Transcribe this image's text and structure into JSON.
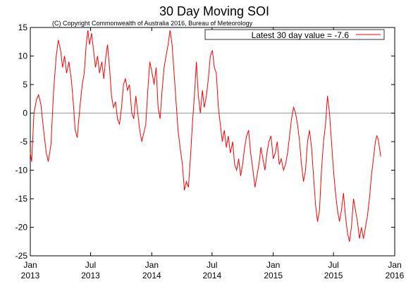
{
  "chart_data": {
    "type": "line",
    "title": "30 Day Moving SOI",
    "subtitle": "(C) Copyright Commonwealth of Australia 2016, Bureau of Meteorology",
    "legend": {
      "label": "Latest 30 day value = -7.6",
      "placement": "top-right"
    },
    "xlabel": "",
    "ylabel": "",
    "ylim": [
      -25,
      15
    ],
    "yticks": [
      15,
      10,
      5,
      0,
      -5,
      -10,
      -15,
      -20,
      -25
    ],
    "xlim": [
      "2013-01-01",
      "2016-01-01"
    ],
    "xticks": [
      {
        "date": "2013-01-01",
        "month": "Jan",
        "year": "2013"
      },
      {
        "date": "2013-07-01",
        "month": "Jul",
        "year": "2013"
      },
      {
        "date": "2014-01-01",
        "month": "Jan",
        "year": "2014"
      },
      {
        "date": "2014-07-01",
        "month": "Jul",
        "year": "2014"
      },
      {
        "date": "2015-01-01",
        "month": "Jan",
        "year": "2015"
      },
      {
        "date": "2015-07-01",
        "month": "Jul",
        "year": "2015"
      },
      {
        "date": "2016-01-01",
        "month": "Jan",
        "year": "2016"
      }
    ],
    "grid": false,
    "zero_line": true,
    "series": [
      {
        "name": "Latest 30 day value = -7.6",
        "color": "#ff0000",
        "points": [
          [
            "2013-01-01",
            -7
          ],
          [
            "2013-01-05",
            -8.5
          ],
          [
            "2013-01-12",
            0
          ],
          [
            "2013-01-20",
            2.5
          ],
          [
            "2013-01-26",
            3.2
          ],
          [
            "2013-02-02",
            1.5
          ],
          [
            "2013-02-10",
            -3
          ],
          [
            "2013-02-18",
            -7
          ],
          [
            "2013-02-24",
            -8.5
          ],
          [
            "2013-03-04",
            -5.5
          ],
          [
            "2013-03-12",
            4
          ],
          [
            "2013-03-20",
            10
          ],
          [
            "2013-03-26",
            12.8
          ],
          [
            "2013-04-02",
            11
          ],
          [
            "2013-04-08",
            8
          ],
          [
            "2013-04-14",
            10
          ],
          [
            "2013-04-20",
            7
          ],
          [
            "2013-04-27",
            9
          ],
          [
            "2013-05-04",
            6
          ],
          [
            "2013-05-10",
            2
          ],
          [
            "2013-05-16",
            -3
          ],
          [
            "2013-05-22",
            -4.3
          ],
          [
            "2013-05-30",
            1
          ],
          [
            "2013-06-06",
            5
          ],
          [
            "2013-06-12",
            7
          ],
          [
            "2013-06-18",
            12
          ],
          [
            "2013-06-23",
            14.5
          ],
          [
            "2013-06-28",
            12
          ],
          [
            "2013-07-04",
            14
          ],
          [
            "2013-07-10",
            11
          ],
          [
            "2013-07-16",
            8
          ],
          [
            "2013-07-22",
            10
          ],
          [
            "2013-07-28",
            7
          ],
          [
            "2013-08-04",
            9
          ],
          [
            "2013-08-10",
            6
          ],
          [
            "2013-08-16",
            10
          ],
          [
            "2013-08-21",
            12
          ],
          [
            "2013-08-27",
            8
          ],
          [
            "2013-09-02",
            3
          ],
          [
            "2013-09-08",
            1
          ],
          [
            "2013-09-14",
            2
          ],
          [
            "2013-09-20",
            -1
          ],
          [
            "2013-09-26",
            -2
          ],
          [
            "2013-10-02",
            1
          ],
          [
            "2013-10-08",
            5
          ],
          [
            "2013-10-14",
            6
          ],
          [
            "2013-10-20",
            4
          ],
          [
            "2013-10-26",
            5
          ],
          [
            "2013-11-02",
            0
          ],
          [
            "2013-11-08",
            -1
          ],
          [
            "2013-11-14",
            3
          ],
          [
            "2013-11-20",
            0
          ],
          [
            "2013-11-26",
            -3
          ],
          [
            "2013-12-02",
            -5
          ],
          [
            "2013-12-08",
            -3.5
          ],
          [
            "2013-12-14",
            -2
          ],
          [
            "2013-12-20",
            4
          ],
          [
            "2013-12-26",
            9
          ],
          [
            "2014-01-02",
            7
          ],
          [
            "2014-01-08",
            5
          ],
          [
            "2014-01-14",
            8
          ],
          [
            "2014-01-20",
            1
          ],
          [
            "2014-01-26",
            -1
          ],
          [
            "2014-02-01",
            4
          ],
          [
            "2014-02-07",
            8
          ],
          [
            "2014-02-13",
            10
          ],
          [
            "2014-02-19",
            12
          ],
          [
            "2014-02-25",
            14.5
          ],
          [
            "2014-03-03",
            12
          ],
          [
            "2014-03-09",
            7
          ],
          [
            "2014-03-15",
            2
          ],
          [
            "2014-03-21",
            -3
          ],
          [
            "2014-03-27",
            -6
          ],
          [
            "2014-04-03",
            -9
          ],
          [
            "2014-04-09",
            -13.5
          ],
          [
            "2014-04-15",
            -12
          ],
          [
            "2014-04-21",
            -13
          ],
          [
            "2014-04-27",
            -8
          ],
          [
            "2014-05-03",
            -2
          ],
          [
            "2014-05-09",
            3
          ],
          [
            "2014-05-15",
            9
          ],
          [
            "2014-05-21",
            3
          ],
          [
            "2014-05-27",
            0
          ],
          [
            "2014-06-02",
            4
          ],
          [
            "2014-06-08",
            1
          ],
          [
            "2014-06-14",
            3
          ],
          [
            "2014-06-20",
            6
          ],
          [
            "2014-06-26",
            10
          ],
          [
            "2014-07-02",
            11
          ],
          [
            "2014-07-08",
            8
          ],
          [
            "2014-07-14",
            7
          ],
          [
            "2014-07-20",
            1
          ],
          [
            "2014-07-26",
            -2
          ],
          [
            "2014-08-01",
            -5
          ],
          [
            "2014-08-07",
            -3
          ],
          [
            "2014-08-13",
            -6
          ],
          [
            "2014-08-19",
            -4
          ],
          [
            "2014-08-25",
            -7
          ],
          [
            "2014-09-01",
            -5
          ],
          [
            "2014-09-07",
            -9
          ],
          [
            "2014-09-13",
            -10
          ],
          [
            "2014-09-19",
            -8
          ],
          [
            "2014-09-25",
            -11
          ],
          [
            "2014-10-01",
            -9
          ],
          [
            "2014-10-07",
            -6
          ],
          [
            "2014-10-13",
            -4
          ],
          [
            "2014-10-19",
            -3
          ],
          [
            "2014-10-25",
            -7
          ],
          [
            "2014-11-01",
            -10
          ],
          [
            "2014-11-07",
            -13
          ],
          [
            "2014-11-13",
            -11
          ],
          [
            "2014-11-19",
            -9
          ],
          [
            "2014-11-25",
            -6
          ],
          [
            "2014-12-01",
            -8
          ],
          [
            "2014-12-07",
            -10
          ],
          [
            "2014-12-13",
            -7
          ],
          [
            "2014-12-19",
            -5
          ],
          [
            "2014-12-25",
            -4
          ],
          [
            "2015-01-01",
            -8
          ],
          [
            "2015-01-07",
            -7
          ],
          [
            "2015-01-13",
            -5
          ],
          [
            "2015-01-19",
            -9
          ],
          [
            "2015-01-25",
            -8
          ],
          [
            "2015-02-01",
            -10
          ],
          [
            "2015-02-07",
            -9
          ],
          [
            "2015-02-13",
            -7
          ],
          [
            "2015-02-19",
            -4
          ],
          [
            "2015-02-25",
            -1
          ],
          [
            "2015-03-03",
            1
          ],
          [
            "2015-03-09",
            0
          ],
          [
            "2015-03-15",
            -2
          ],
          [
            "2015-03-21",
            -5
          ],
          [
            "2015-03-27",
            -9
          ],
          [
            "2015-04-02",
            -12
          ],
          [
            "2015-04-08",
            -10
          ],
          [
            "2015-04-14",
            -5
          ],
          [
            "2015-04-20",
            -3
          ],
          [
            "2015-04-26",
            -6
          ],
          [
            "2015-05-02",
            -11
          ],
          [
            "2015-05-08",
            -16
          ],
          [
            "2015-05-14",
            -19
          ],
          [
            "2015-05-20",
            -17
          ],
          [
            "2015-05-26",
            -10
          ],
          [
            "2015-06-01",
            -5
          ],
          [
            "2015-06-07",
            -2
          ],
          [
            "2015-06-13",
            3
          ],
          [
            "2015-06-19",
            0
          ],
          [
            "2015-06-25",
            -5
          ],
          [
            "2015-07-01",
            -10
          ],
          [
            "2015-07-07",
            -14
          ],
          [
            "2015-07-13",
            -17
          ],
          [
            "2015-07-19",
            -19
          ],
          [
            "2015-07-25",
            -17
          ],
          [
            "2015-07-31",
            -14
          ],
          [
            "2015-08-06",
            -18
          ],
          [
            "2015-08-12",
            -21
          ],
          [
            "2015-08-18",
            -22.5
          ],
          [
            "2015-08-24",
            -20
          ],
          [
            "2015-08-30",
            -15
          ],
          [
            "2015-09-05",
            -17
          ],
          [
            "2015-09-11",
            -19
          ],
          [
            "2015-09-17",
            -22
          ],
          [
            "2015-09-23",
            -20
          ],
          [
            "2015-09-29",
            -22
          ],
          [
            "2015-10-05",
            -20
          ],
          [
            "2015-10-11",
            -18
          ],
          [
            "2015-10-17",
            -15
          ],
          [
            "2015-10-23",
            -11
          ],
          [
            "2015-10-29",
            -8
          ],
          [
            "2015-11-04",
            -5
          ],
          [
            "2015-11-08",
            -4
          ],
          [
            "2015-11-12",
            -4.5
          ],
          [
            "2015-11-16",
            -6
          ],
          [
            "2015-11-20",
            -7.6
          ]
        ]
      }
    ]
  }
}
